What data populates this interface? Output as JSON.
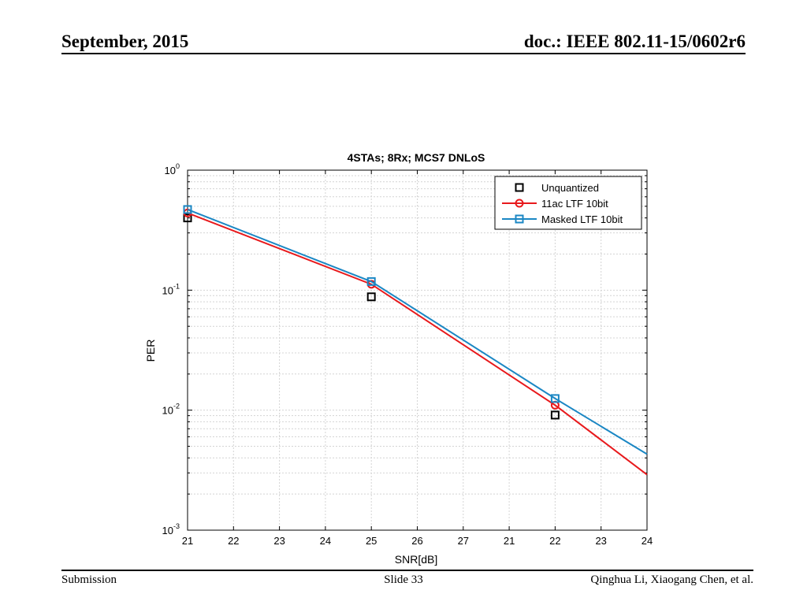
{
  "header": {
    "date": "September, 2015",
    "doc": "doc.: IEEE 802.11-15/0602r6"
  },
  "footer": {
    "left": "Submission",
    "center": "Slide 33",
    "right": "Qinghua Li, Xiaogang Chen, et al."
  },
  "colors": {
    "unquantized": "#000000",
    "ac11": "#e8191c",
    "masked": "#1b87c4",
    "grid": "#d4d4d4"
  },
  "chart_data": {
    "type": "line",
    "title": "4STAs; 8Rx; MCS7 DNLoS",
    "xlabel": "SNR[dB]",
    "ylabel": "PER",
    "yscale": "log",
    "ylim": [
      0.001,
      1
    ],
    "y_tick_labels": [
      {
        "base": "10",
        "exp": "0"
      },
      {
        "base": "10",
        "exp": "-1"
      },
      {
        "base": "10",
        "exp": "-2"
      },
      {
        "base": "10",
        "exp": "-3"
      }
    ],
    "x_tick_labels": [
      "21",
      "22",
      "23",
      "24",
      "25",
      "26",
      "27",
      "21",
      "22",
      "23",
      "24"
    ],
    "grid": true,
    "legend_position": "top-right",
    "series": [
      {
        "name": "Unquantized",
        "style": "markers",
        "marker": "square",
        "color": "#000000",
        "points": [
          {
            "x": "21",
            "y": 0.4
          },
          {
            "x": "25",
            "y": 0.088
          },
          {
            "x": "22",
            "y": 0.0091
          }
        ]
      },
      {
        "name": "11ac LTF 10bit",
        "style": "line",
        "marker": "circle",
        "color": "#e8191c",
        "points": [
          {
            "x": "21",
            "y": 0.44
          },
          {
            "x": "25",
            "y": 0.112
          },
          {
            "x": "22",
            "y": 0.011
          },
          {
            "x": "24",
            "y": 0.0029
          }
        ]
      },
      {
        "name": "Masked LTF 10bit",
        "style": "line",
        "marker": "square",
        "color": "#1b87c4",
        "points": [
          {
            "x": "21",
            "y": 0.47
          },
          {
            "x": "25",
            "y": 0.118
          },
          {
            "x": "22",
            "y": 0.0125
          },
          {
            "x": "24",
            "y": 0.0043
          }
        ]
      }
    ]
  }
}
